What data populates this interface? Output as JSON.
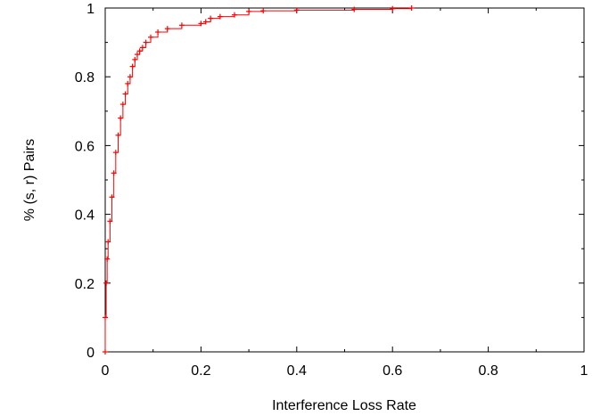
{
  "chart_data": {
    "type": "line",
    "title": "",
    "xlabel": "Interference Loss Rate",
    "ylabel": "% (s, r) Pairs",
    "xlim": [
      0,
      1
    ],
    "ylim": [
      0,
      1
    ],
    "x_ticks": [
      "0",
      "0.2",
      "0.4",
      "0.6",
      "0.8",
      "1"
    ],
    "y_ticks": [
      "0",
      "0.2",
      "0.4",
      "0.6",
      "0.8",
      "1"
    ],
    "grid": false,
    "legend": "none",
    "series": [
      {
        "color": "#ff0000",
        "marker": "plus",
        "x": [
          0.0,
          0.0,
          0.002,
          0.004,
          0.006,
          0.01,
          0.014,
          0.018,
          0.022,
          0.027,
          0.032,
          0.037,
          0.042,
          0.047,
          0.052,
          0.057,
          0.062,
          0.067,
          0.072,
          0.078,
          0.085,
          0.095,
          0.11,
          0.13,
          0.16,
          0.2,
          0.21,
          0.22,
          0.24,
          0.27,
          0.3,
          0.33,
          0.4,
          0.52,
          0.6,
          0.64
        ],
        "y": [
          0.0,
          0.1,
          0.2,
          0.27,
          0.32,
          0.38,
          0.45,
          0.52,
          0.58,
          0.63,
          0.68,
          0.72,
          0.75,
          0.78,
          0.8,
          0.83,
          0.85,
          0.865,
          0.875,
          0.885,
          0.9,
          0.915,
          0.93,
          0.94,
          0.95,
          0.955,
          0.96,
          0.97,
          0.975,
          0.98,
          0.99,
          0.992,
          0.994,
          0.996,
          0.998,
          1.0
        ]
      }
    ]
  }
}
